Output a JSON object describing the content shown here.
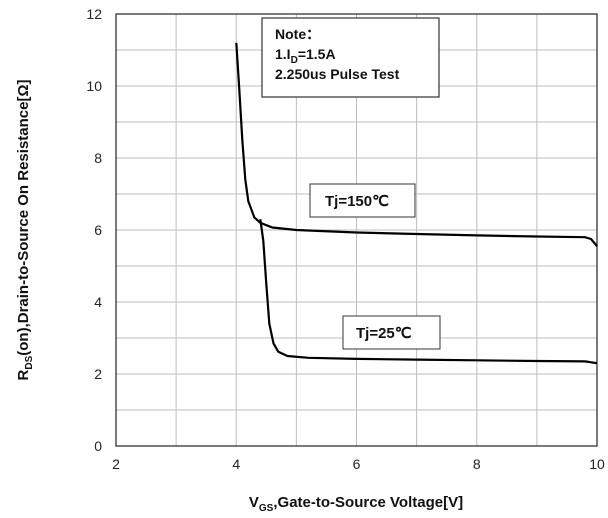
{
  "chart_data": {
    "type": "line",
    "xlabel": {
      "main": "V",
      "sub": "GS",
      "rest": ",Gate-to-Source Voltage[V]"
    },
    "ylabel": {
      "main": "R",
      "sub": "DS",
      "rest": "(on),Drain-to-Source On Resistance[Ω]"
    },
    "xlim": [
      2,
      10
    ],
    "ylim": [
      0,
      12
    ],
    "xticks": [
      "2",
      "4",
      "6",
      "8",
      "10"
    ],
    "yticks": [
      "0",
      "2",
      "4",
      "6",
      "8",
      "10",
      "12"
    ],
    "grid": true,
    "note": {
      "title": "Note：",
      "line1_main": "1.I",
      "line1_sub": "D",
      "line1_rest": "=1.5A",
      "line2": "2.250us Pulse Test"
    },
    "series": [
      {
        "name": "Tj=150℃",
        "points": [
          [
            4.0,
            11.2
          ],
          [
            4.05,
            9.9
          ],
          [
            4.1,
            8.5
          ],
          [
            4.15,
            7.4
          ],
          [
            4.2,
            6.8
          ],
          [
            4.3,
            6.35
          ],
          [
            4.4,
            6.2
          ],
          [
            4.6,
            6.07
          ],
          [
            5.0,
            6.0
          ],
          [
            6.0,
            5.93
          ],
          [
            7.0,
            5.89
          ],
          [
            8.0,
            5.85
          ],
          [
            9.0,
            5.82
          ],
          [
            9.8,
            5.8
          ],
          [
            9.9,
            5.75
          ],
          [
            10.0,
            5.55
          ]
        ]
      },
      {
        "name": "Tj=25℃",
        "points": [
          [
            4.4,
            6.3
          ],
          [
            4.45,
            5.7
          ],
          [
            4.5,
            4.5
          ],
          [
            4.55,
            3.4
          ],
          [
            4.62,
            2.85
          ],
          [
            4.7,
            2.62
          ],
          [
            4.85,
            2.5
          ],
          [
            5.2,
            2.45
          ],
          [
            6.0,
            2.42
          ],
          [
            7.0,
            2.4
          ],
          [
            8.0,
            2.38
          ],
          [
            9.0,
            2.36
          ],
          [
            9.8,
            2.35
          ],
          [
            10.0,
            2.3
          ]
        ]
      }
    ]
  }
}
